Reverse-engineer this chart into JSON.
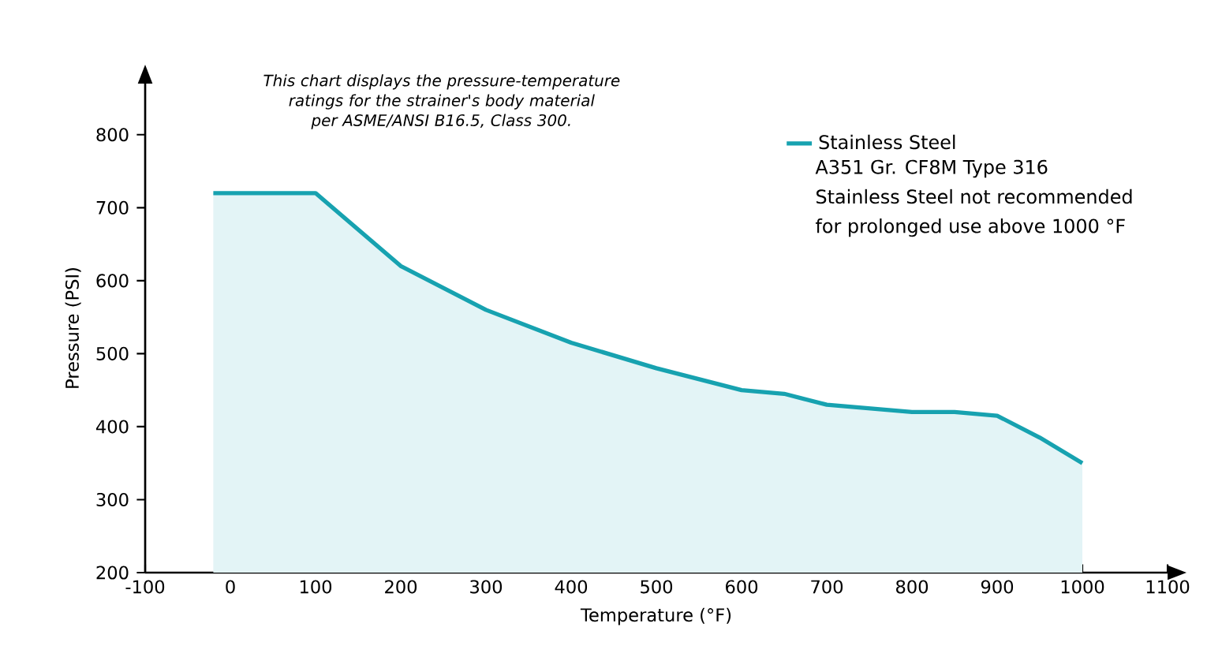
{
  "chart_data": {
    "type": "area",
    "xlabel": "Temperature (°F)",
    "ylabel": "Pressure (PSI)",
    "annotations": [
      "This chart displays the pressure-temperature ratings for the strainer's body material per ASME/ANSI B16.5, Class 300.",
      "A351 Gr. CF8M Type 316",
      "Stainless Steel not recommended",
      "for prolonged use above 1000 °F"
    ],
    "x": [
      -20,
      100,
      200,
      300,
      400,
      500,
      600,
      650,
      700,
      800,
      850,
      900,
      950,
      1000
    ],
    "series": [
      {
        "name": "Stainless Steel",
        "color": "#17a2b0",
        "values": [
          720,
          720,
          620,
          560,
          515,
          480,
          450,
          445,
          430,
          420,
          420,
          415,
          385,
          350
        ]
      }
    ],
    "xlim": [
      -100,
      1100
    ],
    "ylim": [
      200,
      870
    ],
    "xticks": [
      -100,
      0,
      100,
      200,
      300,
      400,
      500,
      600,
      700,
      800,
      900,
      1000,
      1100
    ],
    "yticks": [
      200,
      300,
      400,
      500,
      600,
      700,
      800
    ],
    "grid": false,
    "legend": "top right",
    "marker": "none",
    "line_style": "solid"
  }
}
